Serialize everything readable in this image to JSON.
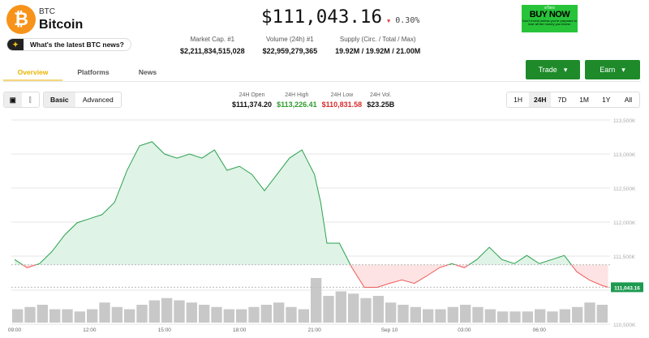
{
  "coin": {
    "symbol": "BTC",
    "name": "Bitcoin",
    "logo_glyph": "₿",
    "price": "$111,043.16",
    "change": "0.30%",
    "change_direction": "down"
  },
  "news_prompt": "What's the latest BTC news?",
  "stats": [
    {
      "label": "Market Cap. #1",
      "value": "$2,211,834,515,028"
    },
    {
      "label": "Volume (24h) #1",
      "value": "$22,959,279,365"
    },
    {
      "label": "Supply (Circ. / Total / Max)",
      "value": "19.92M / 19.92M / 21.00M"
    }
  ],
  "ad": {
    "brand": "eToro",
    "cta": "BUY NOW",
    "disclaimer": "Don't invest unless you're prepared to lose all the money you invest."
  },
  "actions": {
    "trade": "Trade",
    "earn": "Earn"
  },
  "tabs": [
    {
      "label": "Overview",
      "active": true
    },
    {
      "label": "Platforms"
    },
    {
      "label": "News"
    }
  ],
  "chart_controls": {
    "modes": [
      "Basic",
      "Advanced"
    ],
    "active_mode": "Basic",
    "ranges": [
      "1H",
      "24H",
      "7D",
      "1M",
      "1Y",
      "All"
    ],
    "active_range": "24H"
  },
  "ohlc": [
    {
      "label": "24H Open",
      "value": "$111,374.20",
      "color": "#111111"
    },
    {
      "label": "24H High",
      "value": "$113,226.41",
      "color": "#2e9b2e"
    },
    {
      "label": "24H Low",
      "value": "$110,831.58",
      "color": "#d92b2b"
    },
    {
      "label": "24H Vol.",
      "value": "$23.25B",
      "color": "#111111"
    }
  ],
  "colors": {
    "up": "#2aa14f",
    "down": "#ee5b5b",
    "up_fill": "#dff3e6",
    "down_fill": "#fde3e3",
    "badge": "#1e9a50"
  },
  "chart_data": {
    "type": "line",
    "y_ticks": [
      "113,500K",
      "113,000K",
      "112,500K",
      "112,000K",
      "111,500K",
      "110,500K"
    ],
    "y_tick_values": [
      113500,
      113000,
      112500,
      112000,
      111500,
      110500
    ],
    "ylim": [
      110500,
      113600
    ],
    "x_ticks": [
      "09:00",
      "12:00",
      "15:00",
      "18:00",
      "21:00",
      "Sep 10",
      "03:00",
      "06:00"
    ],
    "x_tick_hours": [
      9,
      12,
      15,
      18,
      21,
      24,
      27,
      30
    ],
    "baseline_open": 111374.2,
    "last_price_label": "111,043.16",
    "last_price": 111043.16,
    "series": [
      {
        "x": [
          "09:00",
          "09:30",
          "10:00",
          "10:30",
          "11:00",
          "11:30",
          "12:00",
          "12:30",
          "13:00",
          "13:30",
          "14:00",
          "14:30",
          "15:00",
          "15:30",
          "16:00",
          "16:30",
          "17:00",
          "17:30",
          "18:00",
          "18:30",
          "19:00",
          "19:30",
          "20:00",
          "20:30",
          "21:00",
          "21:15",
          "21:30",
          "22:00",
          "22:30",
          "23:00",
          "23:30",
          "00:00",
          "00:30",
          "01:00",
          "01:30",
          "02:00",
          "02:30",
          "03:00",
          "03:30",
          "04:00",
          "04:30",
          "05:00",
          "05:30",
          "06:00",
          "06:30",
          "07:00",
          "07:30",
          "08:00",
          "08:30",
          "08:45"
        ],
        "y": [
          111450,
          111330,
          111390,
          111570,
          111810,
          111990,
          112050,
          112110,
          112290,
          112760,
          113120,
          113180,
          113000,
          112940,
          113000,
          112940,
          113060,
          112760,
          112820,
          112700,
          112460,
          112700,
          112940,
          113060,
          112700,
          112290,
          111690,
          111690,
          111330,
          111040,
          111040,
          111100,
          111150,
          111100,
          111210,
          111330,
          111390,
          111330,
          111450,
          111630,
          111450,
          111390,
          111510,
          111390,
          111450,
          111510,
          111270,
          111150,
          111070,
          111043
        ]
      }
    ],
    "volume_relative": [
      0.3,
      0.35,
      0.4,
      0.3,
      0.3,
      0.25,
      0.3,
      0.45,
      0.35,
      0.3,
      0.4,
      0.5,
      0.55,
      0.5,
      0.45,
      0.4,
      0.35,
      0.3,
      0.3,
      0.35,
      0.4,
      0.45,
      0.35,
      0.3,
      1.0,
      0.6,
      0.7,
      0.65,
      0.55,
      0.6,
      0.45,
      0.4,
      0.35,
      0.3,
      0.3,
      0.35,
      0.4,
      0.35,
      0.3,
      0.25,
      0.25,
      0.25,
      0.3,
      0.25,
      0.3,
      0.35,
      0.45,
      0.4
    ]
  }
}
